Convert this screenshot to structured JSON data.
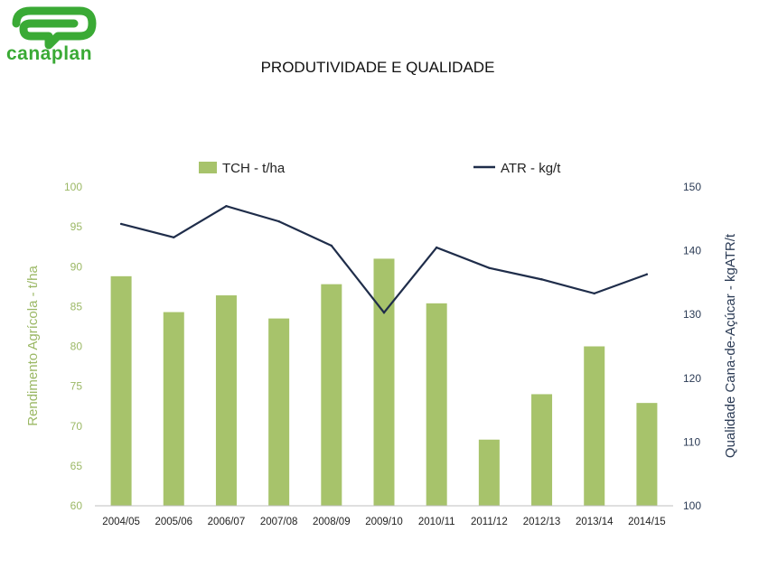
{
  "logo": {
    "text": "canaplan"
  },
  "colors": {
    "bar": "#a7c36b",
    "line": "#1f2d4a",
    "left_axis": "#9bb865",
    "right_axis": "#2b3b55",
    "logo": "#3aaa35"
  },
  "chart_data": {
    "type": "bar",
    "title": "PRODUTIVIDADE E QUALIDADE",
    "categories": [
      "2004/05",
      "2005/06",
      "2006/07",
      "2007/08",
      "2008/09",
      "2009/10",
      "2010/11",
      "2011/12",
      "2012/13",
      "2013/14",
      "2014/15"
    ],
    "series": [
      {
        "name": "TCH - t/ha",
        "type": "bar",
        "axis": "left",
        "values": [
          88.8,
          84.3,
          86.4,
          83.5,
          87.8,
          91.0,
          85.4,
          68.3,
          74.0,
          80.0,
          72.9
        ]
      },
      {
        "name": "ATR - kg/t",
        "type": "line",
        "axis": "right",
        "values": [
          144.2,
          142.1,
          147.0,
          144.6,
          140.8,
          130.3,
          140.5,
          137.3,
          135.5,
          133.3,
          136.3
        ]
      }
    ],
    "ylabel_left": "Rendimento Agrícola - t/ha",
    "ylabel_right": "Qualidade Cana-de-Açúcar - kgATR/t",
    "ylim_left": [
      60,
      100
    ],
    "ylim_right": [
      100,
      150
    ],
    "yticks_left": [
      "60",
      "65",
      "70",
      "75",
      "80",
      "85",
      "90",
      "95",
      "100"
    ],
    "yticks_right": [
      "100",
      "110",
      "120",
      "130",
      "140",
      "150"
    ],
    "legend_position": "top",
    "grid": false
  }
}
